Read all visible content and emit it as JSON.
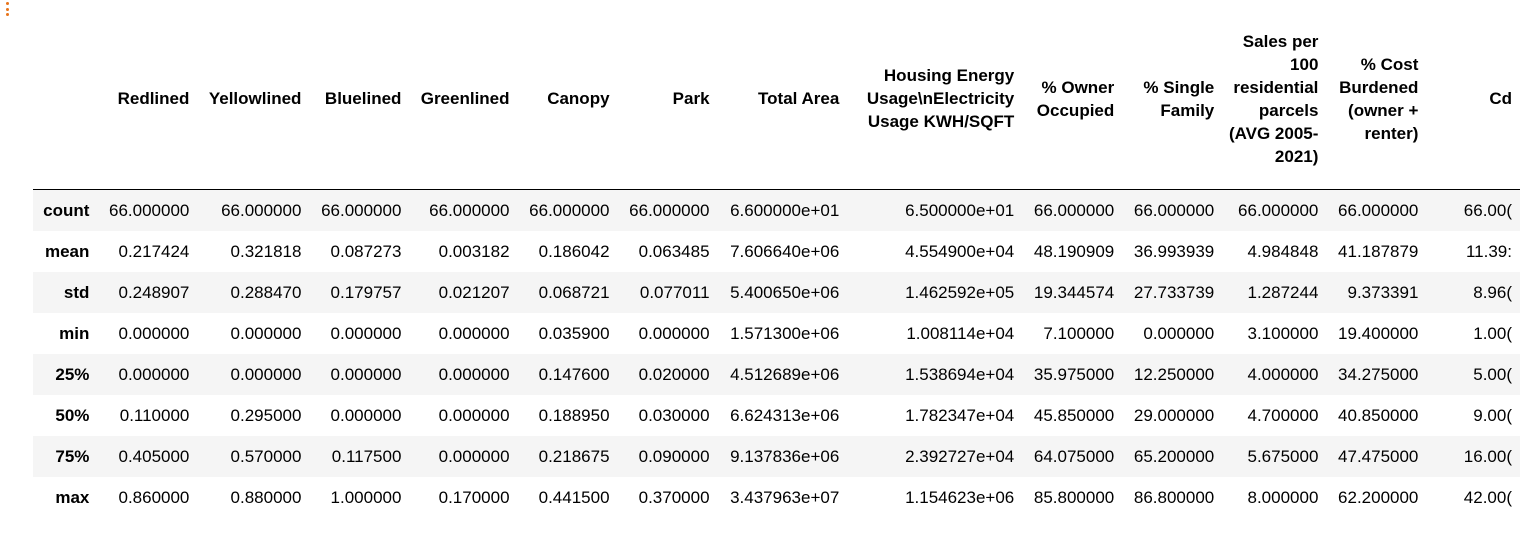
{
  "cell": {
    "marker_icon": "vertical-ellipsis-icon",
    "marker_color": "#e8731a"
  },
  "table": {
    "columns": [
      "Redlined",
      "Yellowlined",
      "Bluelined",
      "Greenlined",
      "Canopy",
      "Park",
      "Total Area",
      "Housing Energy Usage\\nElectricity Usage KWH/SQFT",
      "% Owner Occupied",
      "% Single Family",
      "Sales per 100 residential parcels (AVG 2005-2021)",
      "% Cost Burdened (owner + renter)",
      "Cd"
    ],
    "rows": [
      {
        "index": "count",
        "values": [
          "66.000000",
          "66.000000",
          "66.000000",
          "66.000000",
          "66.000000",
          "66.000000",
          "6.600000e+01",
          "6.500000e+01",
          "66.000000",
          "66.000000",
          "66.000000",
          "66.000000",
          "66.00("
        ]
      },
      {
        "index": "mean",
        "values": [
          "0.217424",
          "0.321818",
          "0.087273",
          "0.003182",
          "0.186042",
          "0.063485",
          "7.606640e+06",
          "4.554900e+04",
          "48.190909",
          "36.993939",
          "4.984848",
          "41.187879",
          "11.39:"
        ]
      },
      {
        "index": "std",
        "values": [
          "0.248907",
          "0.288470",
          "0.179757",
          "0.021207",
          "0.068721",
          "0.077011",
          "5.400650e+06",
          "1.462592e+05",
          "19.344574",
          "27.733739",
          "1.287244",
          "9.373391",
          "8.96("
        ]
      },
      {
        "index": "min",
        "values": [
          "0.000000",
          "0.000000",
          "0.000000",
          "0.000000",
          "0.035900",
          "0.000000",
          "1.571300e+06",
          "1.008114e+04",
          "7.100000",
          "0.000000",
          "3.100000",
          "19.400000",
          "1.00("
        ]
      },
      {
        "index": "25%",
        "values": [
          "0.000000",
          "0.000000",
          "0.000000",
          "0.000000",
          "0.147600",
          "0.020000",
          "4.512689e+06",
          "1.538694e+04",
          "35.975000",
          "12.250000",
          "4.000000",
          "34.275000",
          "5.00("
        ]
      },
      {
        "index": "50%",
        "values": [
          "0.110000",
          "0.295000",
          "0.000000",
          "0.000000",
          "0.188950",
          "0.030000",
          "6.624313e+06",
          "1.782347e+04",
          "45.850000",
          "29.000000",
          "4.700000",
          "40.850000",
          "9.00("
        ]
      },
      {
        "index": "75%",
        "values": [
          "0.405000",
          "0.570000",
          "0.117500",
          "0.000000",
          "0.218675",
          "0.090000",
          "9.137836e+06",
          "2.392727e+04",
          "64.075000",
          "65.200000",
          "5.675000",
          "47.475000",
          "16.00("
        ]
      },
      {
        "index": "max",
        "values": [
          "0.860000",
          "0.880000",
          "1.000000",
          "0.170000",
          "0.441500",
          "0.370000",
          "3.437963e+07",
          "1.154623e+06",
          "85.800000",
          "86.800000",
          "8.000000",
          "62.200000",
          "42.00("
        ]
      }
    ]
  }
}
